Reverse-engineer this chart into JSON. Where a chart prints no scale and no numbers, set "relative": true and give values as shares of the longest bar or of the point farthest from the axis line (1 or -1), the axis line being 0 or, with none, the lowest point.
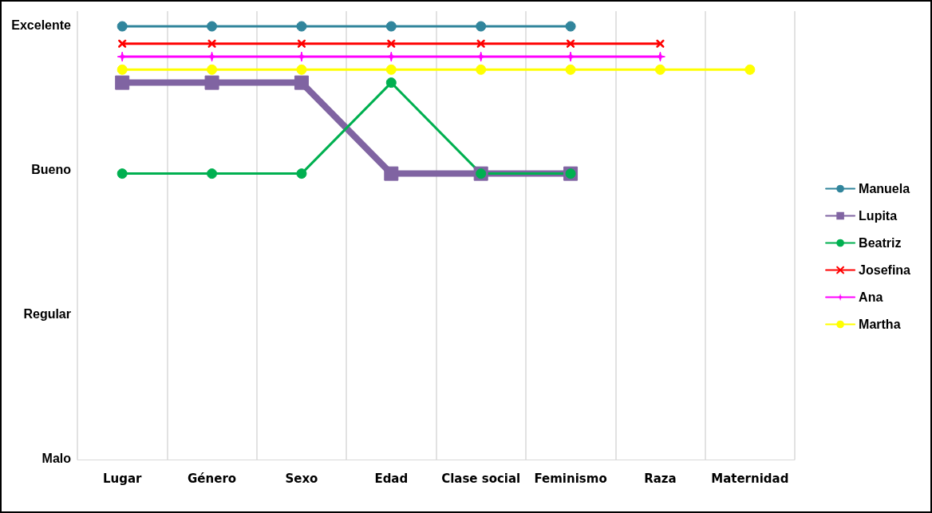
{
  "chart_data": {
    "type": "line",
    "categories": [
      "Lugar",
      "Género",
      "Sexo",
      "Edad",
      "Clase social",
      "Feminismo",
      "Raza",
      "Maternidad"
    ],
    "series": [
      {
        "name": "Manuela",
        "color": "#31859c",
        "marker": "circle",
        "values": [
          1,
          1,
          1,
          1,
          1,
          1,
          null,
          null
        ]
      },
      {
        "name": "Lupita",
        "color": "#8064a2",
        "marker": "square",
        "values": [
          0.87,
          0.87,
          0.87,
          0.66,
          0.66,
          0.66,
          null,
          null
        ]
      },
      {
        "name": "Beatriz",
        "color": "#00b050",
        "marker": "circle",
        "values": [
          0.66,
          0.66,
          0.66,
          0.87,
          0.66,
          0.66,
          null,
          null
        ]
      },
      {
        "name": "Josefina",
        "color": "#ff0000",
        "marker": "cross",
        "values": [
          0.96,
          0.96,
          0.96,
          0.96,
          0.96,
          0.96,
          0.96,
          null
        ]
      },
      {
        "name": "Ana",
        "color": "#ff00ff",
        "marker": "star",
        "values": [
          0.93,
          0.93,
          0.93,
          0.93,
          0.93,
          0.93,
          0.93,
          null
        ]
      },
      {
        "name": "Martha",
        "color": "#ffff00",
        "marker": "circle",
        "values": [
          0.9,
          0.9,
          0.9,
          0.9,
          0.9,
          0.9,
          0.9,
          0.9
        ]
      }
    ],
    "relative": true,
    "annotations": [
      "Excelente",
      "Bueno",
      "Regular",
      "Malo"
    ],
    "grid": "x",
    "legend": "right",
    "line_style": "solid"
  }
}
